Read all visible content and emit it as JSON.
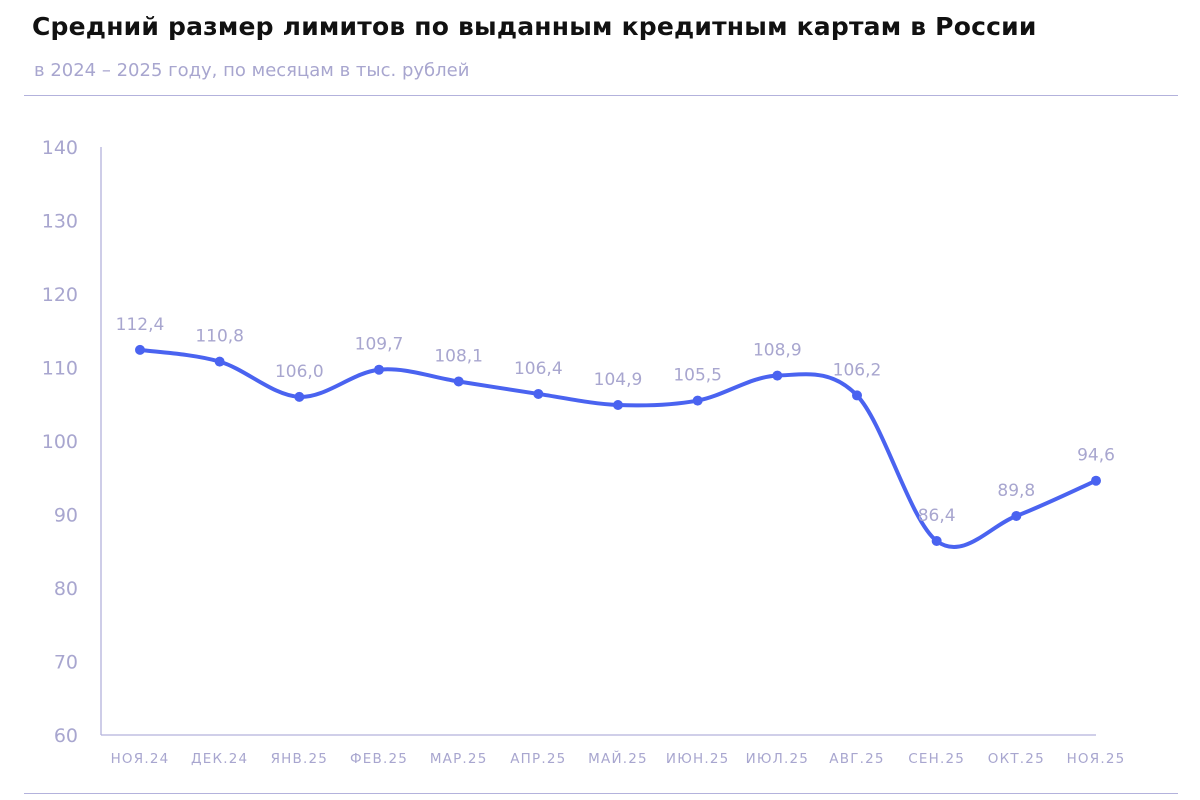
{
  "colors": {
    "line": "#4a63f0",
    "axis": "#b3b2dc",
    "text_muted": "#a8a6cf",
    "title": "#111111"
  },
  "chart_data": {
    "type": "line",
    "title": "Средний размер лимитов по выданным кредитным картам в России",
    "subtitle": "в 2024 – 2025 году, по месяцам в тыс. рублей",
    "categories": [
      "НОЯ.24",
      "ДЕК.24",
      "ЯНВ.25",
      "ФЕВ.25",
      "МАР.25",
      "АПР.25",
      "МАЙ.25",
      "ИЮН.25",
      "ИЮЛ.25",
      "АВГ.25",
      "СЕН.25",
      "ОКТ.25",
      "НОЯ.25"
    ],
    "series": [
      {
        "values": [
          112.4,
          110.8,
          106.0,
          109.7,
          108.1,
          106.4,
          104.9,
          105.5,
          108.9,
          106.2,
          86.4,
          89.8,
          94.6
        ],
        "labels": [
          "112,4",
          "110,8",
          "106,0",
          "109,7",
          "108,1",
          "106,4",
          "104,9",
          "105,5",
          "108,9",
          "106,2",
          "86,4",
          "89,8",
          "94,6"
        ]
      }
    ],
    "ylim": [
      60,
      140
    ],
    "yticks": [
      60,
      70,
      80,
      90,
      100,
      110,
      120,
      130,
      140
    ],
    "xlabel": "",
    "ylabel": "",
    "grid": false,
    "legend": "none",
    "smooth": true,
    "markers": true
  }
}
